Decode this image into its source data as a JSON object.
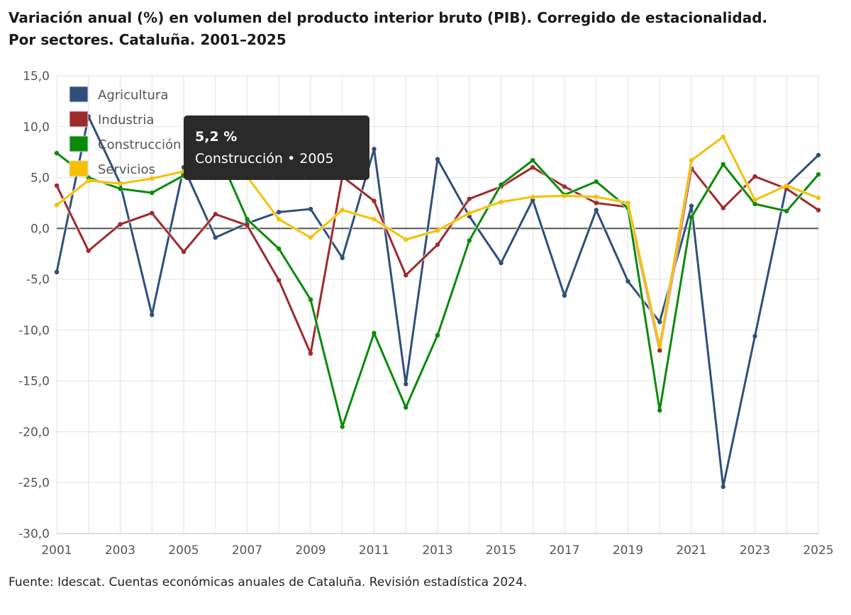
{
  "title_line1": "Variación anual (%) en volumen del producto interior bruto (PIB). Corregido de estacionalidad.",
  "title_line2": "Por sectores. Cataluña. 2001–2025",
  "source": "Fuente: Idescat. Cuentas económicas anuales de Cataluña. Revisión estadística 2024.",
  "tooltip": {
    "value": "5,2 %",
    "series_year": "Construcción • 2005"
  },
  "chart_data": {
    "type": "line",
    "x": [
      2001,
      2002,
      2003,
      2004,
      2005,
      2006,
      2007,
      2008,
      2009,
      2010,
      2011,
      2012,
      2013,
      2014,
      2015,
      2016,
      2017,
      2018,
      2019,
      2020,
      2021,
      2022,
      2023,
      2024,
      2025
    ],
    "x_tick_labels": [
      "2001",
      "2003",
      "2005",
      "2007",
      "2009",
      "2011",
      "2013",
      "2015",
      "2017",
      "2019",
      "2021",
      "2023",
      "2025"
    ],
    "y_tick_labels": [
      "15,0",
      "10,0",
      "5,0",
      "0,0",
      "-5,0",
      "-10,0",
      "-15,0",
      "-20,0",
      "-25,0",
      "-30,0"
    ],
    "ylim": [
      -30,
      15
    ],
    "xlim": [
      2001,
      2025
    ],
    "grid": true,
    "zero_line": true,
    "legend_position": "top-left",
    "series": [
      {
        "name": "Agricultura",
        "color": "#2f4f7a",
        "values": [
          -4.3,
          11.0,
          4.4,
          -8.5,
          6.0,
          -0.9,
          0.5,
          1.6,
          1.9,
          -2.9,
          7.8,
          -15.3,
          6.8,
          1.2,
          -3.4,
          2.8,
          -6.6,
          1.8,
          -5.2,
          -9.2,
          2.2,
          -25.4,
          -10.6,
          4.2,
          7.2
        ]
      },
      {
        "name": "Industria",
        "color": "#9e2a2b",
        "values": [
          4.2,
          -2.2,
          0.4,
          1.5,
          -2.3,
          1.4,
          0.3,
          -5.1,
          -12.3,
          5.1,
          2.7,
          -4.6,
          -1.6,
          2.9,
          4.1,
          6.0,
          4.1,
          2.5,
          2.1,
          -12.0,
          5.9,
          2.0,
          5.1,
          3.9,
          1.8
        ]
      },
      {
        "name": "Construcción",
        "color": "#0a8a0a",
        "values": [
          7.4,
          5.0,
          3.9,
          3.5,
          5.2,
          8.0,
          0.9,
          -2.0,
          -7.0,
          -19.5,
          -10.3,
          -17.6,
          -10.5,
          -1.2,
          4.3,
          6.7,
          3.3,
          4.6,
          2.0,
          -17.9,
          1.1,
          6.3,
          2.4,
          1.7,
          5.3
        ]
      },
      {
        "name": "Servicios",
        "color": "#f5c000",
        "values": [
          2.3,
          4.7,
          4.4,
          4.9,
          5.6,
          5.5,
          5.1,
          0.9,
          -0.9,
          1.8,
          0.9,
          -1.1,
          -0.2,
          1.5,
          2.6,
          3.1,
          3.2,
          3.1,
          2.5,
          -11.6,
          6.7,
          9.0,
          2.8,
          4.2,
          3.0
        ]
      }
    ]
  }
}
